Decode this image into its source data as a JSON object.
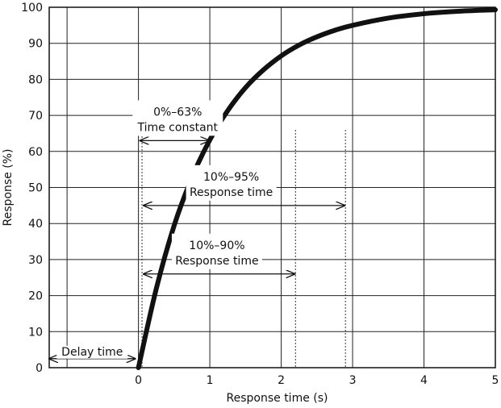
{
  "chart_data": {
    "type": "line",
    "title": "",
    "xlabel": "Response time (s)",
    "ylabel": "Response (%)",
    "xlim": [
      -1.25,
      5
    ],
    "ylim": [
      0,
      100
    ],
    "x_ticks": [
      0,
      1,
      2,
      3,
      4,
      5
    ],
    "x_gridlines": [
      -1,
      0,
      1,
      2,
      3,
      4,
      5
    ],
    "y_ticks": [
      0,
      10,
      20,
      30,
      40,
      50,
      60,
      70,
      80,
      90,
      100
    ],
    "grid": true,
    "legend": "none",
    "series": [
      {
        "color": "#111111",
        "x": [
          0,
          0.25,
          0.5,
          0.75,
          1,
          1.25,
          1.5,
          1.75,
          2,
          2.25,
          2.5,
          2.75,
          3,
          3.5,
          4,
          4.5,
          5
        ],
        "y": [
          0,
          21.9,
          39.4,
          52.8,
          63.2,
          71.3,
          77.7,
          82.6,
          86.5,
          89.5,
          91.8,
          93.6,
          95.0,
          97.0,
          98.2,
          98.9,
          99.3
        ]
      }
    ],
    "reference_lines": [
      {
        "x": 0.0
      },
      {
        "x": 0.05
      },
      {
        "x": 2.2
      },
      {
        "x": 2.9
      }
    ],
    "annotations": [
      {
        "label": "Delay time",
        "from_x": -1.25,
        "to_x": 0,
        "y": 2.5
      },
      {
        "line1": "0%–63%",
        "line2": "Time constant",
        "from_x": 0,
        "to_x": 1,
        "y": 63
      },
      {
        "line1": "10%–95%",
        "line2": "Response time",
        "from_x": 0.05,
        "to_x": 2.9,
        "y": 45
      },
      {
        "line1": "10%–90%",
        "line2": "Response time",
        "from_x": 0.05,
        "to_x": 2.2,
        "y": 26
      }
    ]
  }
}
